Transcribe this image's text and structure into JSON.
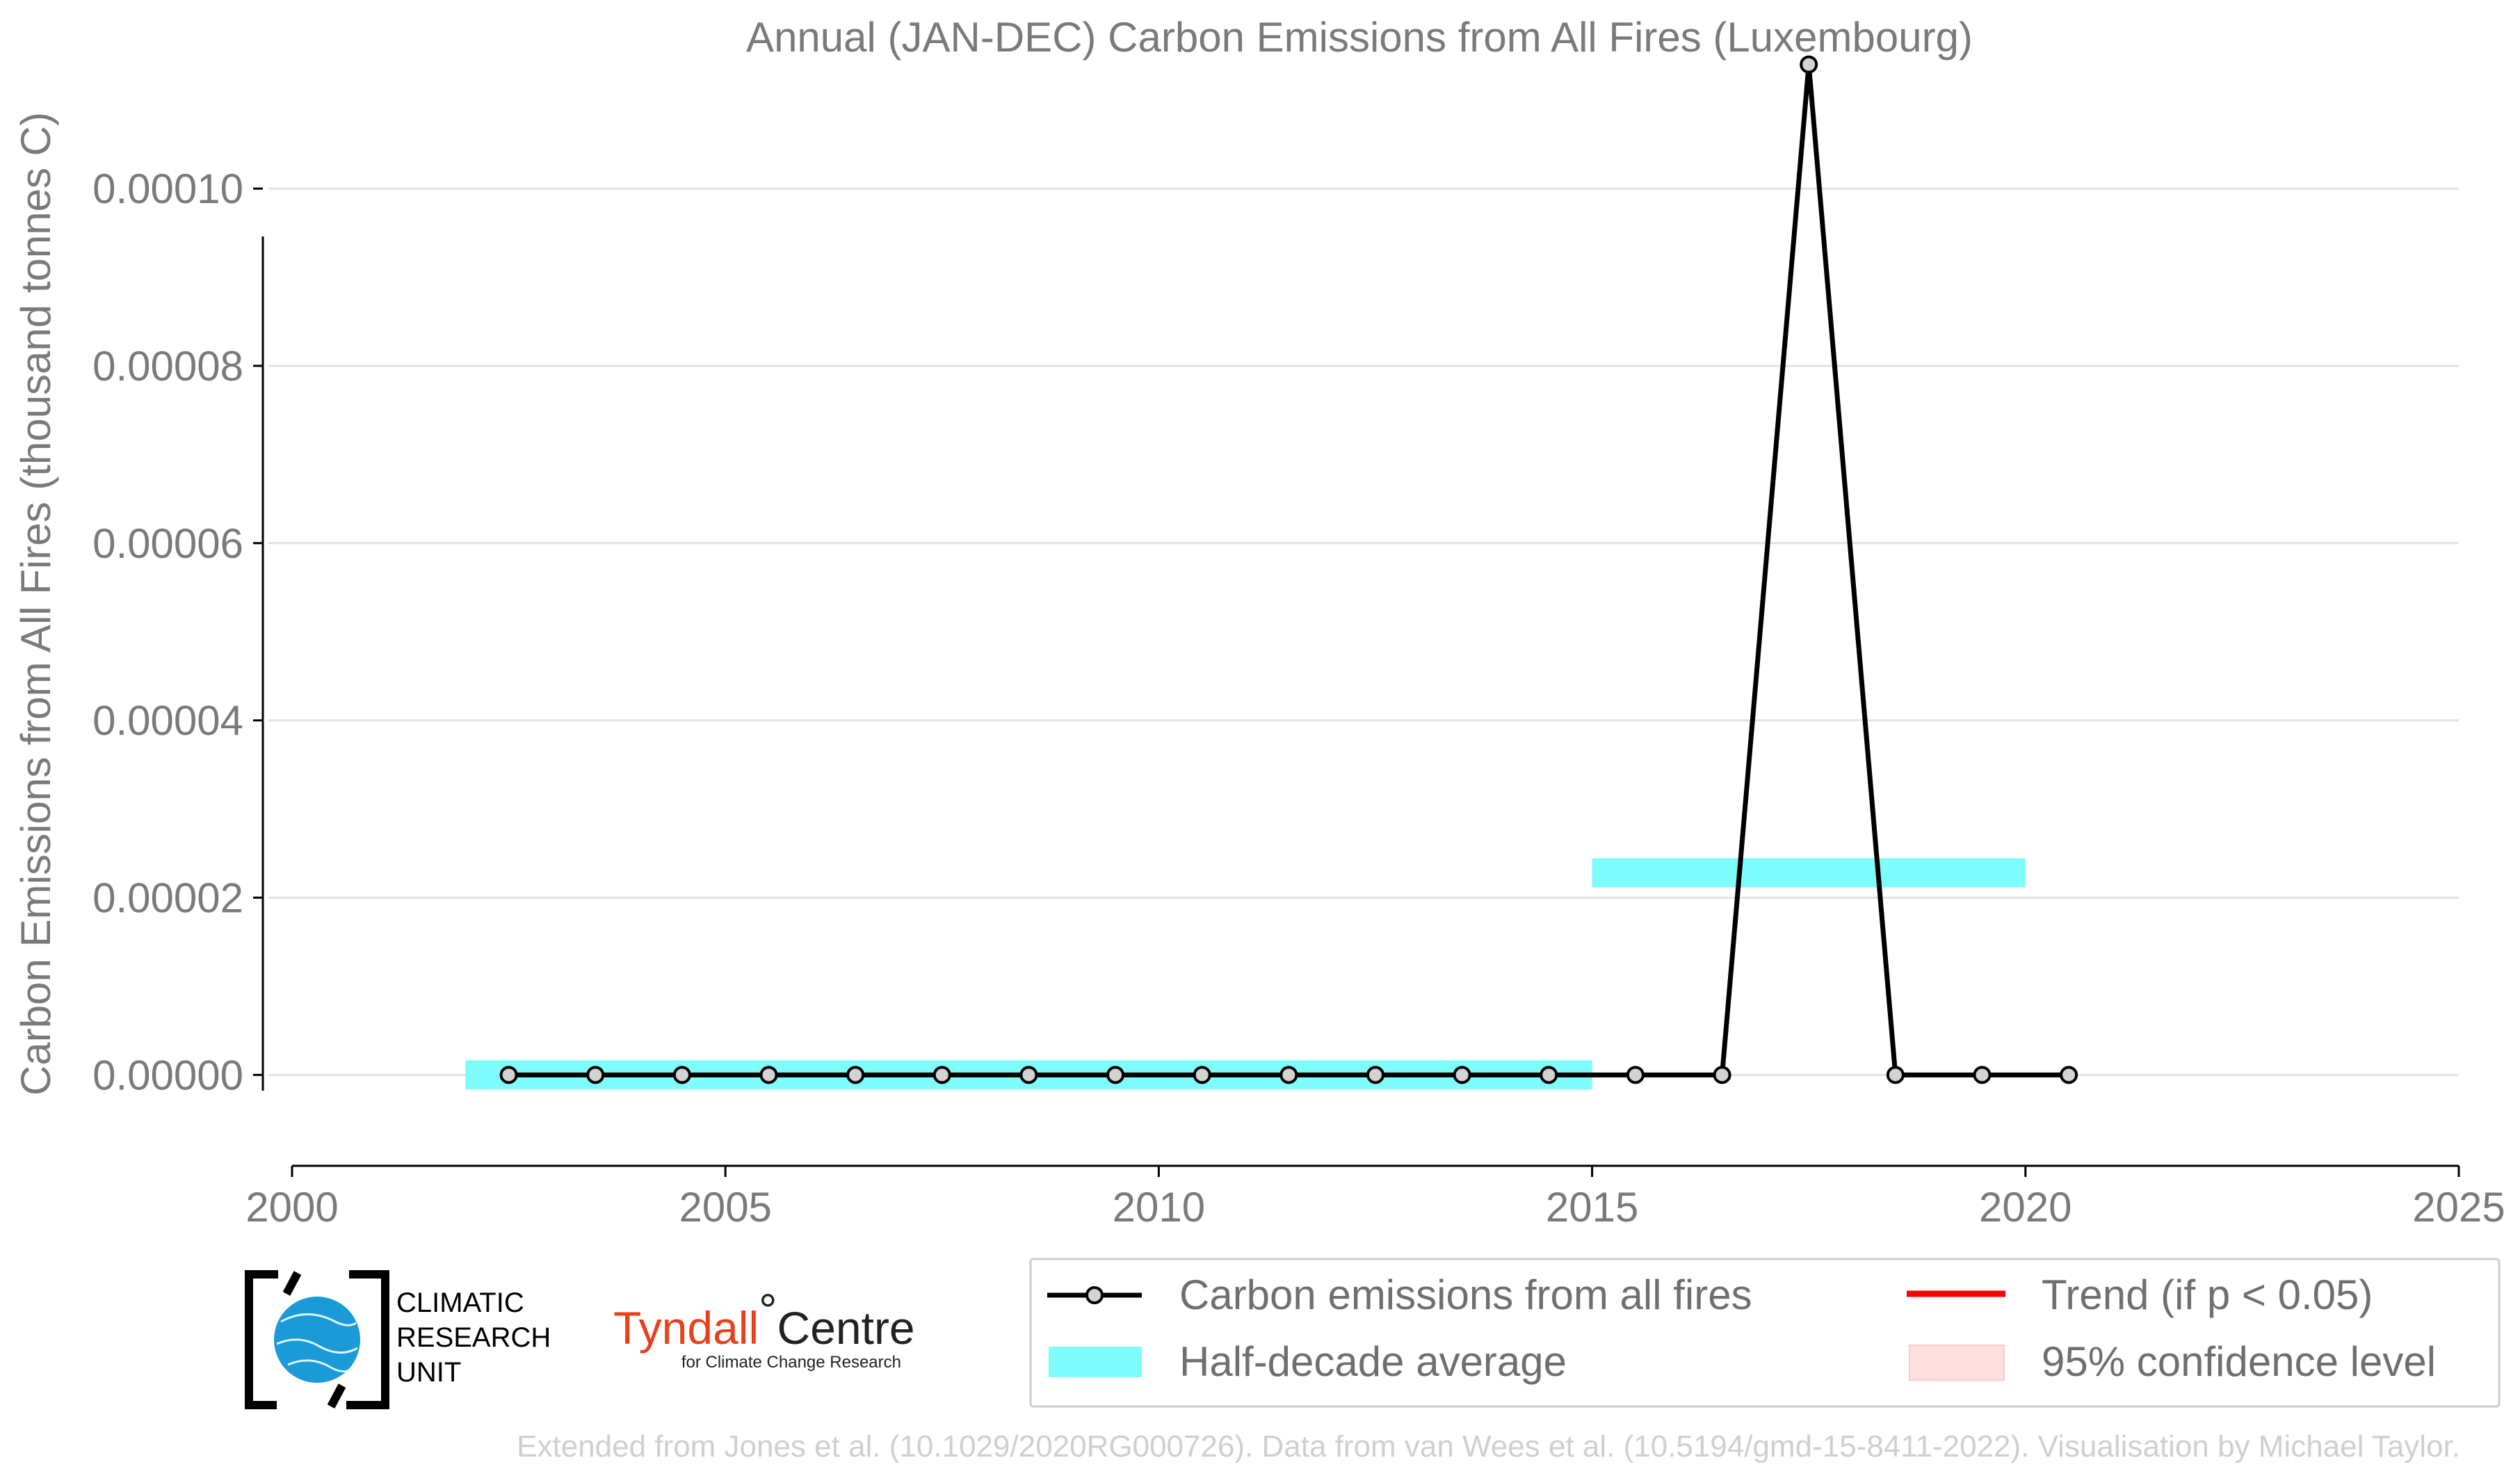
{
  "chart_data": {
    "type": "line",
    "title": "Annual (JAN-DEC) Carbon Emissions from All Fires (Luxembourg)",
    "xlabel": "",
    "ylabel": "Carbon Emissions from All Fires (thousand tonnes C)",
    "xlim": [
      2000,
      2025
    ],
    "ylim": [
      -9e-06,
      0.000115
    ],
    "x_ticks": [
      2000,
      2005,
      2010,
      2015,
      2020,
      2025
    ],
    "y_ticks": [
      0,
      2e-05,
      4e-05,
      6e-05,
      8e-05,
      0.0001
    ],
    "y_tick_labels": [
      "0.00000",
      "0.00002",
      "0.00004",
      "0.00006",
      "0.00008",
      "0.00010"
    ],
    "grid": "horizontal",
    "series": [
      {
        "name": "Carbon emissions from all fires",
        "color": "#000000",
        "x": [
          2002.5,
          2003.5,
          2004.5,
          2005.5,
          2006.5,
          2007.5,
          2008.5,
          2009.5,
          2010.5,
          2011.5,
          2012.5,
          2013.5,
          2014.5,
          2015.5,
          2016.5,
          2017.5,
          2018.5,
          2019.5,
          2020.5
        ],
        "y": [
          0,
          0,
          0,
          0,
          0,
          0,
          0,
          0,
          0,
          0,
          0,
          0,
          0,
          0,
          0,
          0.000114,
          0,
          0,
          0
        ]
      }
    ],
    "half_decade_average": {
      "name": "Half-decade average",
      "color": "#7ffcfc",
      "segments": [
        {
          "x0": 2002,
          "x1": 2015,
          "y": 0
        },
        {
          "x0": 2015,
          "x1": 2020,
          "y": 2.28e-05
        }
      ]
    },
    "legend": {
      "placement": "bottom-right",
      "entries": [
        {
          "label": "Carbon emissions from all fires",
          "kind": "line-marker",
          "color": "#000000"
        },
        {
          "label": "Trend (if p < 0.05)",
          "kind": "line",
          "color": "#ff0000"
        },
        {
          "label": "Half-decade average",
          "kind": "band",
          "color": "#7ffcfc"
        },
        {
          "label": "95% confidence level",
          "kind": "band",
          "color": "#ffe0e0"
        }
      ]
    }
  },
  "logos": {
    "cru_lines": [
      "CLIMATIC",
      "RESEARCH",
      "UNIT"
    ],
    "tyndall_main": "Tyndall",
    "tyndall_degree": "°",
    "tyndall_centre": "Centre",
    "tyndall_sub": "for Climate Change Research"
  },
  "footer": "Extended from Jones et al. (10.1029/2020RG000726). Data from van Wees et al. (10.5194/gmd-15-8411-2022). Visualisation by Michael Taylor."
}
